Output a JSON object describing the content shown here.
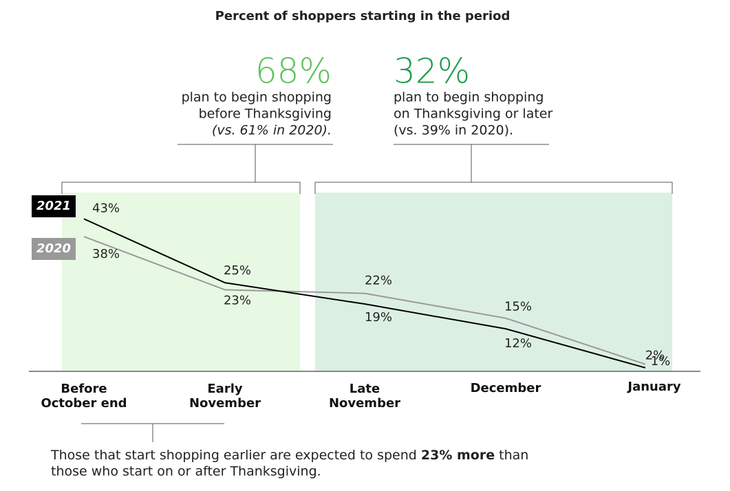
{
  "chart_data": {
    "type": "line",
    "title": "Percent of shoppers starting in the period",
    "categories": [
      [
        "Before",
        "October end"
      ],
      [
        "Early",
        "November"
      ],
      [
        "Late",
        "November"
      ],
      [
        "December"
      ],
      [
        "January"
      ]
    ],
    "series": [
      {
        "name": "2021",
        "color": "#000000",
        "values": [
          43,
          25,
          19,
          12,
          1
        ],
        "value_labels": [
          "43%",
          "25%",
          "19%",
          "12%",
          "1%"
        ]
      },
      {
        "name": "2020",
        "color": "#999999",
        "values": [
          38,
          23,
          22,
          15,
          2
        ],
        "value_labels": [
          "38%",
          "23%",
          "22%",
          "15%",
          "2%"
        ]
      }
    ],
    "ylim": [
      0,
      45
    ],
    "annotations": [
      {
        "headline": "68%",
        "lines": [
          "plan to begin shopping",
          "before Thanksgiving",
          "(vs. 61% in 2020)."
        ],
        "color": "#5cc25a"
      },
      {
        "headline": "32%",
        "lines": [
          "plan to begin shopping",
          "on Thanksgiving or later",
          "(vs. 39% in 2020)."
        ],
        "color": "#1e9e4a"
      }
    ],
    "note": [
      "Those that start shopping earlier are expected to spend ",
      "23% more",
      " than",
      "those who start on or after Thanksgiving."
    ]
  }
}
